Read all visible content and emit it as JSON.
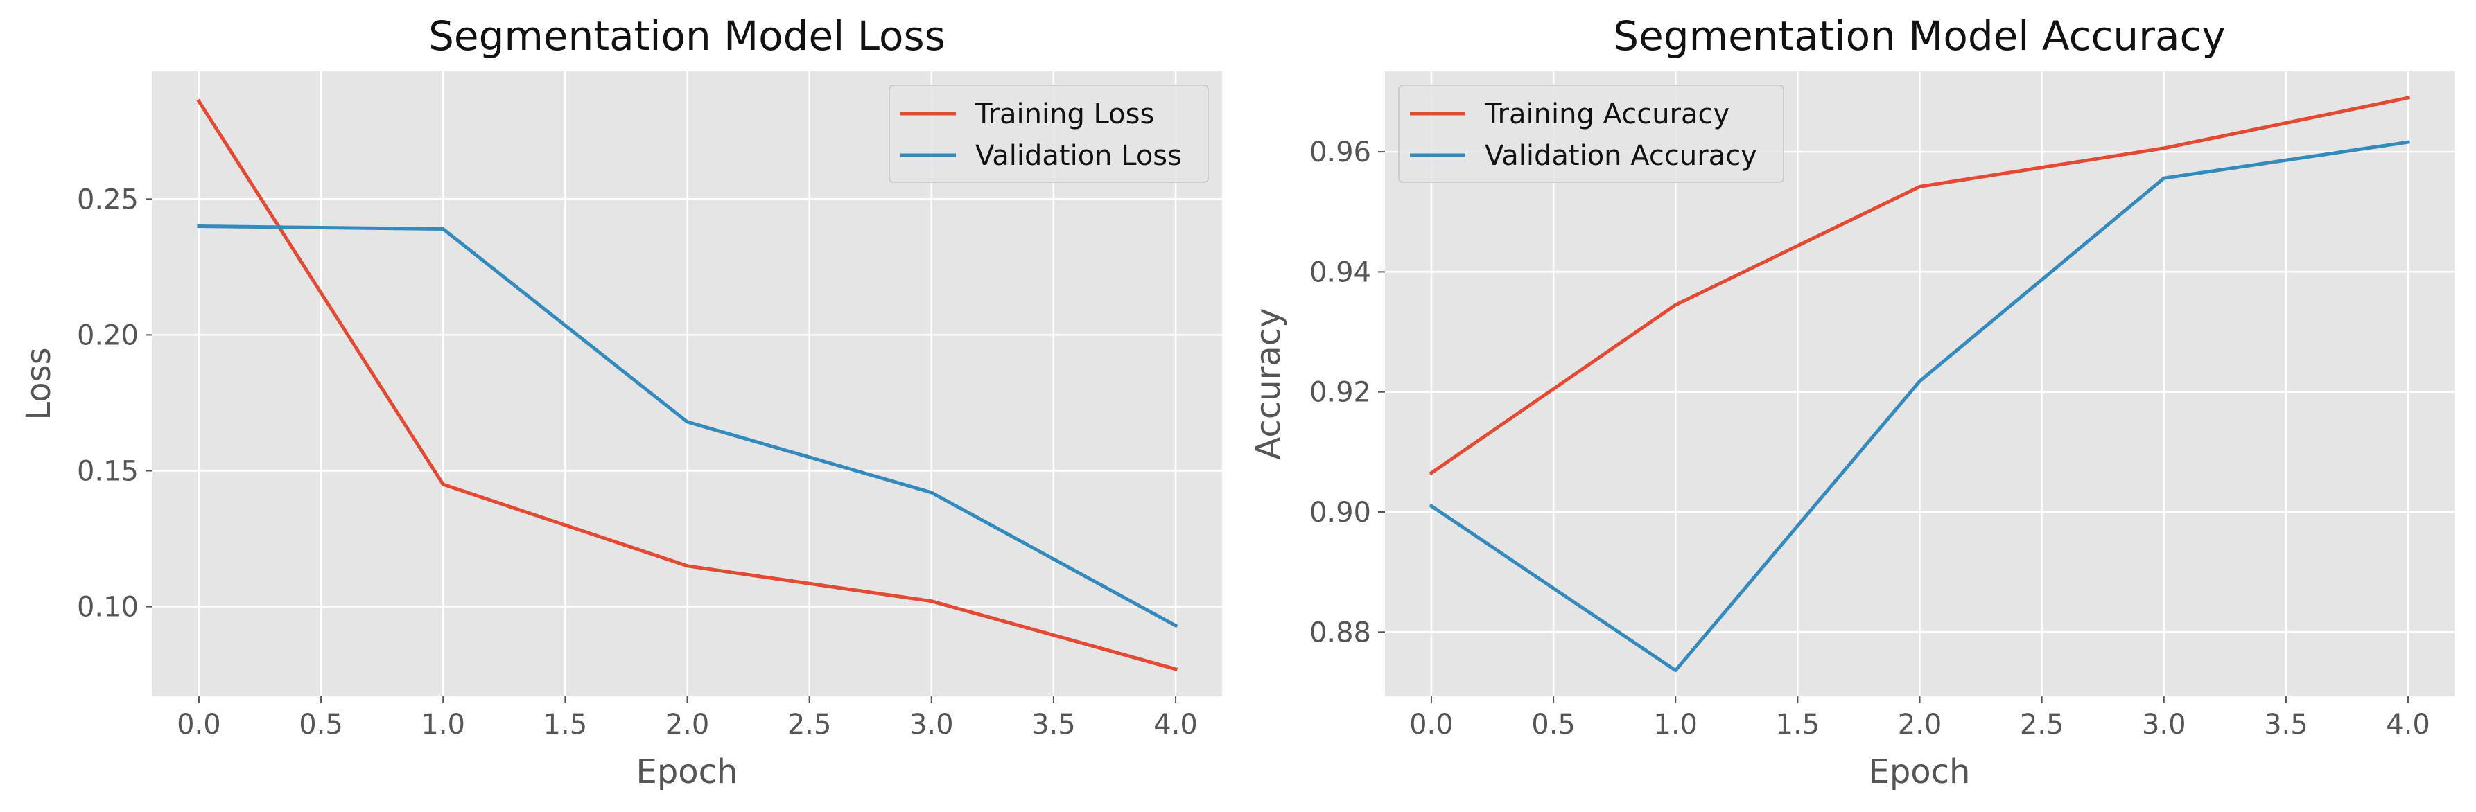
{
  "colors": {
    "figure_background": "#ffffff",
    "axes_background": "#e5e5e5",
    "grid": "#ffffff",
    "tick_text": "#555555",
    "title_text": "#111111",
    "series_1": "#e24a33",
    "series_2": "#348abd"
  },
  "chart_data": [
    {
      "type": "line",
      "title": "Segmentation Model Loss",
      "xlabel": "Epoch",
      "ylabel": "Loss",
      "xlim": [
        -0.19,
        4.19
      ],
      "ylim": [
        0.067,
        0.297
      ],
      "xticks": [
        0.0,
        0.5,
        1.0,
        1.5,
        2.0,
        2.5,
        3.0,
        3.5,
        4.0
      ],
      "xtick_labels": [
        "0.0",
        "0.5",
        "1.0",
        "1.5",
        "2.0",
        "2.5",
        "3.0",
        "3.5",
        "4.0"
      ],
      "yticks": [
        0.1,
        0.15,
        0.2,
        0.25
      ],
      "ytick_labels": [
        "0.10",
        "0.15",
        "0.20",
        "0.25"
      ],
      "grid": true,
      "legend_position": "top-right",
      "x": [
        0,
        1,
        2,
        3,
        4
      ],
      "series": [
        {
          "name": "Training Loss",
          "color": "#e24a33",
          "values": [
            0.286,
            0.145,
            0.115,
            0.102,
            0.077
          ]
        },
        {
          "name": "Validation Loss",
          "color": "#348abd",
          "values": [
            0.24,
            0.239,
            0.168,
            0.142,
            0.093
          ]
        }
      ]
    },
    {
      "type": "line",
      "title": "Segmentation Model Accuracy",
      "xlabel": "Epoch",
      "ylabel": "Accuracy",
      "xlim": [
        -0.19,
        4.19
      ],
      "ylim": [
        0.8693,
        0.9734
      ],
      "xticks": [
        0.0,
        0.5,
        1.0,
        1.5,
        2.0,
        2.5,
        3.0,
        3.5,
        4.0
      ],
      "xtick_labels": [
        "0.0",
        "0.5",
        "1.0",
        "1.5",
        "2.0",
        "2.5",
        "3.0",
        "3.5",
        "4.0"
      ],
      "yticks": [
        0.88,
        0.9,
        0.92,
        0.94,
        0.96
      ],
      "ytick_labels": [
        "0.88",
        "0.90",
        "0.92",
        "0.94",
        "0.96"
      ],
      "grid": true,
      "legend_position": "top-left",
      "x": [
        0,
        1,
        2,
        3,
        4
      ],
      "series": [
        {
          "name": "Training Accuracy",
          "color": "#e24a33",
          "values": [
            0.9065,
            0.9345,
            0.9542,
            0.9606,
            0.969
          ]
        },
        {
          "name": "Validation Accuracy",
          "color": "#348abd",
          "values": [
            0.901,
            0.8736,
            0.9218,
            0.9556,
            0.9616
          ]
        }
      ]
    }
  ]
}
